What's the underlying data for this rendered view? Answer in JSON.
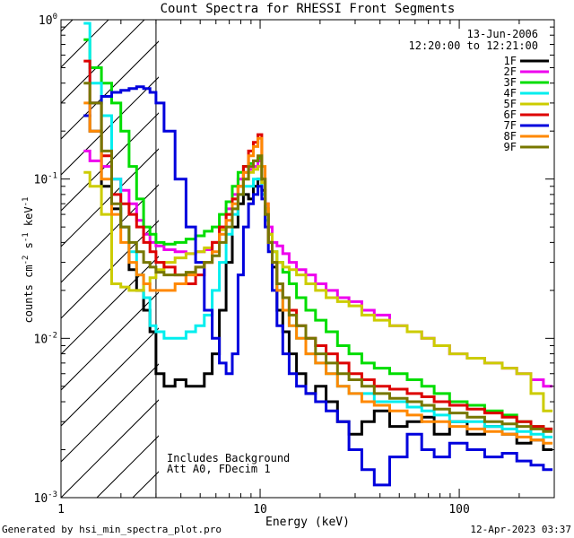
{
  "chart_data": {
    "type": "line",
    "title": "Count Spectra for RHESSI Front Segments",
    "xlabel": "Energy (keV)",
    "ylabel_main": "counts cm",
    "ylabel_sup1": "-2",
    "ylabel_mid": " s",
    "ylabel_sup2": "-1",
    "ylabel_end": " keV",
    "ylabel_sup3": "-1",
    "xscale": "log",
    "yscale": "log",
    "xlim": [
      1,
      300
    ],
    "ylim": [
      0.001,
      1
    ],
    "x_tick_labels": [
      {
        "value": 1,
        "label": "1"
      },
      {
        "value": 10,
        "label": "10"
      },
      {
        "value": 100,
        "label": "100"
      }
    ],
    "y_tick_labels": [
      {
        "value": 1,
        "mant": "10",
        "exp": "0"
      },
      {
        "value": 0.1,
        "mant": "10",
        "exp": "-1"
      },
      {
        "value": 0.01,
        "mant": "10",
        "exp": "-2"
      },
      {
        "value": 0.001,
        "mant": "10",
        "exp": "-3"
      }
    ],
    "date": "13-Jun-2006",
    "time_range": "12:20:00 to 12:21:00",
    "attenuator_cutoff_kev": 3,
    "annotation_lines": [
      "Includes Background",
      "Att A0, FDecim 1"
    ],
    "footer_left": "Generated by hsi_min_spectra_plot.pro",
    "footer_right": "12-Apr-2023 03:37",
    "series": [
      {
        "name": "1F",
        "color": "#000000",
        "x": [
          1.3,
          1.5,
          1.7,
          1.9,
          2.1,
          2.3,
          2.5,
          2.7,
          2.9,
          3.1,
          3.5,
          4.0,
          4.5,
          5.0,
          5.5,
          6.0,
          6.5,
          7.0,
          7.5,
          8.0,
          8.5,
          9.0,
          9.5,
          10.0,
          10.4,
          10.8,
          11.2,
          11.8,
          12.5,
          13.5,
          14.5,
          16,
          18,
          20,
          23,
          26,
          30,
          35,
          40,
          50,
          60,
          70,
          80,
          100,
          120,
          150,
          180,
          210,
          250,
          280
        ],
        "values": [
          0.25,
          0.2,
          0.09,
          0.065,
          0.05,
          0.027,
          0.02,
          0.015,
          0.011,
          0.006,
          0.005,
          0.0055,
          0.005,
          0.005,
          0.006,
          0.008,
          0.015,
          0.03,
          0.05,
          0.07,
          0.08,
          0.075,
          0.09,
          0.1,
          0.085,
          0.06,
          0.04,
          0.028,
          0.015,
          0.011,
          0.008,
          0.006,
          0.0045,
          0.005,
          0.004,
          0.003,
          0.0025,
          0.003,
          0.0035,
          0.0028,
          0.003,
          0.0032,
          0.0025,
          0.003,
          0.0025,
          0.0028,
          0.0025,
          0.0022,
          0.0023,
          0.002
        ]
      },
      {
        "name": "2F",
        "color": "#ee00ee",
        "x": [
          1.3,
          1.5,
          1.7,
          1.9,
          2.1,
          2.3,
          2.5,
          2.7,
          2.9,
          3.1,
          3.5,
          4.0,
          4.5,
          5.0,
          5.5,
          6.0,
          6.5,
          7.0,
          7.5,
          8.0,
          8.5,
          9.0,
          9.5,
          10.0,
          10.4,
          10.8,
          11.2,
          11.8,
          12.5,
          13.5,
          14.5,
          16,
          18,
          20,
          23,
          26,
          30,
          35,
          40,
          50,
          60,
          70,
          80,
          100,
          120,
          150,
          180,
          210,
          250,
          280
        ],
        "values": [
          0.15,
          0.13,
          0.12,
          0.1,
          0.085,
          0.07,
          0.055,
          0.045,
          0.04,
          0.038,
          0.036,
          0.035,
          0.034,
          0.035,
          0.036,
          0.04,
          0.05,
          0.065,
          0.08,
          0.1,
          0.11,
          0.115,
          0.12,
          0.13,
          0.1,
          0.07,
          0.05,
          0.04,
          0.038,
          0.034,
          0.03,
          0.027,
          0.025,
          0.022,
          0.02,
          0.018,
          0.017,
          0.015,
          0.014,
          0.012,
          0.011,
          0.01,
          0.009,
          0.008,
          0.0075,
          0.007,
          0.0065,
          0.006,
          0.0055,
          0.005
        ]
      },
      {
        "name": "3F",
        "color": "#00dd00",
        "x": [
          1.3,
          1.5,
          1.7,
          1.9,
          2.1,
          2.3,
          2.5,
          2.7,
          2.9,
          3.1,
          3.5,
          4.0,
          4.5,
          5.0,
          5.5,
          6.0,
          6.5,
          7.0,
          7.5,
          8.0,
          8.5,
          9.0,
          9.5,
          10.0,
          10.4,
          10.8,
          11.2,
          11.8,
          12.5,
          13.5,
          14.5,
          16,
          18,
          20,
          23,
          26,
          30,
          35,
          40,
          50,
          60,
          70,
          80,
          100,
          120,
          150,
          180,
          210,
          250,
          280
        ],
        "values": [
          0.75,
          0.5,
          0.4,
          0.3,
          0.2,
          0.12,
          0.075,
          0.05,
          0.045,
          0.04,
          0.039,
          0.04,
          0.042,
          0.044,
          0.047,
          0.05,
          0.06,
          0.072,
          0.09,
          0.11,
          0.12,
          0.125,
          0.13,
          0.135,
          0.1,
          0.065,
          0.045,
          0.035,
          0.03,
          0.026,
          0.022,
          0.018,
          0.015,
          0.013,
          0.011,
          0.009,
          0.008,
          0.007,
          0.0065,
          0.006,
          0.0055,
          0.005,
          0.0045,
          0.004,
          0.0038,
          0.0035,
          0.0033,
          0.003,
          0.0028,
          0.0027
        ]
      },
      {
        "name": "4F",
        "color": "#00eeee",
        "x": [
          1.3,
          1.5,
          1.7,
          1.9,
          2.1,
          2.3,
          2.5,
          2.7,
          2.9,
          3.1,
          3.5,
          4.0,
          4.5,
          5.0,
          5.5,
          6.0,
          6.5,
          7.0,
          7.5,
          8.0,
          8.5,
          9.0,
          9.5,
          10.0,
          10.4,
          10.8,
          11.2,
          11.8,
          12.5,
          13.5,
          14.5,
          16,
          18,
          20,
          23,
          26,
          30,
          35,
          40,
          50,
          60,
          70,
          80,
          100,
          120,
          150,
          180,
          210,
          250,
          280
        ],
        "values": [
          0.95,
          0.4,
          0.25,
          0.1,
          0.05,
          0.035,
          0.025,
          0.018,
          0.012,
          0.011,
          0.01,
          0.01,
          0.011,
          0.012,
          0.014,
          0.02,
          0.03,
          0.045,
          0.06,
          0.08,
          0.09,
          0.09,
          0.1,
          0.1,
          0.08,
          0.055,
          0.04,
          0.03,
          0.02,
          0.015,
          0.012,
          0.01,
          0.008,
          0.007,
          0.006,
          0.005,
          0.0045,
          0.0045,
          0.004,
          0.004,
          0.0037,
          0.0035,
          0.0033,
          0.003,
          0.003,
          0.0028,
          0.0027,
          0.0026,
          0.0025,
          0.0024
        ]
      },
      {
        "name": "5F",
        "color": "#cccc00",
        "x": [
          1.3,
          1.5,
          1.7,
          1.9,
          2.1,
          2.3,
          2.5,
          2.7,
          2.9,
          3.1,
          3.5,
          4.0,
          4.5,
          5.0,
          5.5,
          6.0,
          6.5,
          7.0,
          7.5,
          8.0,
          8.5,
          9.0,
          9.5,
          10.0,
          10.4,
          10.8,
          11.2,
          11.8,
          12.5,
          13.5,
          14.5,
          16,
          18,
          20,
          23,
          26,
          30,
          35,
          40,
          50,
          60,
          70,
          80,
          100,
          120,
          150,
          180,
          210,
          250,
          280
        ],
        "values": [
          0.11,
          0.09,
          0.06,
          0.022,
          0.021,
          0.02,
          0.02,
          0.022,
          0.024,
          0.027,
          0.03,
          0.032,
          0.034,
          0.035,
          0.037,
          0.04,
          0.048,
          0.06,
          0.075,
          0.09,
          0.1,
          0.11,
          0.115,
          0.12,
          0.095,
          0.065,
          0.045,
          0.035,
          0.03,
          0.028,
          0.027,
          0.025,
          0.022,
          0.02,
          0.018,
          0.017,
          0.016,
          0.014,
          0.013,
          0.012,
          0.011,
          0.01,
          0.009,
          0.008,
          0.0075,
          0.007,
          0.0065,
          0.006,
          0.0045,
          0.0035
        ]
      },
      {
        "name": "6F",
        "color": "#dd0000",
        "x": [
          1.3,
          1.5,
          1.7,
          1.9,
          2.1,
          2.3,
          2.5,
          2.7,
          2.9,
          3.1,
          3.5,
          4.0,
          4.5,
          5.0,
          5.5,
          6.0,
          6.5,
          7.0,
          7.5,
          8.0,
          8.5,
          9.0,
          9.5,
          10.0,
          10.4,
          10.8,
          11.2,
          11.8,
          12.5,
          13.5,
          14.5,
          16,
          18,
          20,
          23,
          26,
          30,
          35,
          40,
          50,
          60,
          70,
          80,
          100,
          120,
          150,
          180,
          210,
          250,
          280
        ],
        "values": [
          0.55,
          0.3,
          0.14,
          0.08,
          0.07,
          0.06,
          0.05,
          0.04,
          0.035,
          0.03,
          0.028,
          0.025,
          0.022,
          0.025,
          0.03,
          0.04,
          0.05,
          0.06,
          0.075,
          0.09,
          0.12,
          0.15,
          0.17,
          0.19,
          0.1,
          0.06,
          0.04,
          0.03,
          0.022,
          0.018,
          0.015,
          0.012,
          0.01,
          0.009,
          0.008,
          0.007,
          0.006,
          0.0055,
          0.005,
          0.0048,
          0.0045,
          0.0043,
          0.004,
          0.0038,
          0.0036,
          0.0034,
          0.0032,
          0.003,
          0.0028,
          0.0027
        ]
      },
      {
        "name": "7F",
        "color": "#0000dd",
        "x": [
          1.3,
          1.5,
          1.7,
          1.9,
          2.1,
          2.3,
          2.5,
          2.7,
          2.9,
          3.1,
          3.5,
          4.0,
          4.5,
          5.0,
          5.5,
          6.0,
          6.5,
          7.0,
          7.5,
          8.0,
          8.5,
          9.0,
          9.5,
          10.0,
          10.4,
          10.8,
          11.2,
          11.8,
          12.5,
          13.5,
          14.5,
          16,
          18,
          20,
          23,
          26,
          30,
          35,
          40,
          50,
          60,
          70,
          80,
          100,
          120,
          150,
          180,
          210,
          250,
          280
        ],
        "values": [
          0.25,
          0.3,
          0.33,
          0.35,
          0.36,
          0.37,
          0.38,
          0.37,
          0.35,
          0.3,
          0.2,
          0.1,
          0.05,
          0.03,
          0.015,
          0.01,
          0.007,
          0.006,
          0.008,
          0.025,
          0.05,
          0.07,
          0.08,
          0.09,
          0.075,
          0.05,
          0.035,
          0.02,
          0.012,
          0.008,
          0.006,
          0.005,
          0.0045,
          0.004,
          0.0035,
          0.003,
          0.002,
          0.0015,
          0.0012,
          0.0018,
          0.0025,
          0.002,
          0.0018,
          0.0022,
          0.002,
          0.0018,
          0.0019,
          0.0017,
          0.0016,
          0.0015
        ]
      },
      {
        "name": "8F",
        "color": "#ff8800",
        "x": [
          1.3,
          1.5,
          1.7,
          1.9,
          2.1,
          2.3,
          2.5,
          2.7,
          2.9,
          3.1,
          3.5,
          4.0,
          4.5,
          5.0,
          5.5,
          6.0,
          6.5,
          7.0,
          7.5,
          8.0,
          8.5,
          9.0,
          9.5,
          10.0,
          10.4,
          10.8,
          11.2,
          11.8,
          12.5,
          13.5,
          14.5,
          16,
          18,
          20,
          23,
          26,
          30,
          35,
          40,
          50,
          60,
          70,
          80,
          100,
          120,
          150,
          180,
          210,
          250,
          280
        ],
        "values": [
          0.3,
          0.2,
          0.1,
          0.06,
          0.04,
          0.03,
          0.025,
          0.022,
          0.02,
          0.02,
          0.02,
          0.022,
          0.025,
          0.028,
          0.03,
          0.035,
          0.045,
          0.055,
          0.07,
          0.09,
          0.11,
          0.14,
          0.16,
          0.18,
          0.12,
          0.07,
          0.04,
          0.03,
          0.02,
          0.015,
          0.012,
          0.01,
          0.008,
          0.007,
          0.006,
          0.005,
          0.0045,
          0.004,
          0.0038,
          0.0035,
          0.0033,
          0.003,
          0.003,
          0.0028,
          0.0027,
          0.0026,
          0.0025,
          0.0024,
          0.0023,
          0.0022
        ]
      },
      {
        "name": "9F",
        "color": "#777700",
        "x": [
          1.3,
          1.5,
          1.7,
          1.9,
          2.1,
          2.3,
          2.5,
          2.7,
          2.9,
          3.1,
          3.5,
          4.0,
          4.5,
          5.0,
          5.5,
          6.0,
          6.5,
          7.0,
          7.5,
          8.0,
          8.5,
          9.0,
          9.5,
          10.0,
          10.4,
          10.8,
          11.2,
          11.8,
          12.5,
          13.5,
          14.5,
          16,
          18,
          20,
          23,
          26,
          30,
          35,
          40,
          50,
          60,
          70,
          80,
          100,
          120,
          150,
          180,
          210,
          250,
          280
        ],
        "values": [
          0.4,
          0.3,
          0.15,
          0.07,
          0.05,
          0.04,
          0.035,
          0.03,
          0.028,
          0.026,
          0.025,
          0.025,
          0.026,
          0.028,
          0.03,
          0.033,
          0.04,
          0.05,
          0.065,
          0.08,
          0.1,
          0.12,
          0.13,
          0.14,
          0.1,
          0.06,
          0.04,
          0.03,
          0.022,
          0.018,
          0.014,
          0.012,
          0.01,
          0.008,
          0.007,
          0.006,
          0.0055,
          0.005,
          0.0045,
          0.0042,
          0.004,
          0.0038,
          0.0036,
          0.0034,
          0.0032,
          0.003,
          0.0029,
          0.0028,
          0.0027,
          0.0026
        ]
      }
    ]
  }
}
